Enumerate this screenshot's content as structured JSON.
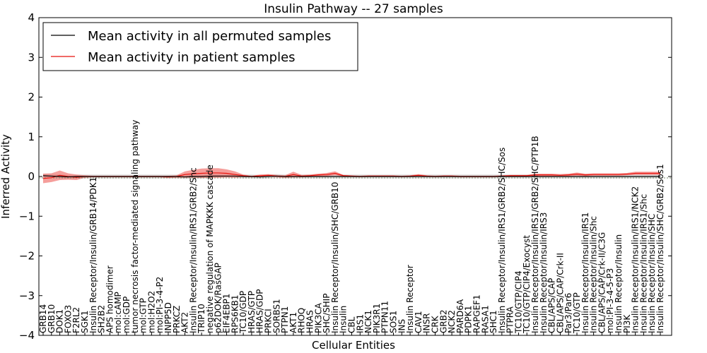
{
  "chart_data": {
    "type": "line",
    "title": "Insulin Pathway -- 27 samples",
    "xlabel": "Cellular Entities",
    "ylabel": "Inferred Activity",
    "ylim": [
      -4,
      4
    ],
    "yticks": [
      -4,
      -3,
      -2,
      -1,
      0,
      1,
      2,
      3,
      4
    ],
    "ytick_labels": [
      "−4",
      "−3",
      "−2",
      "−1",
      "0",
      "1",
      "2",
      "3",
      "4"
    ],
    "grid": false,
    "legend_position": "top-left",
    "colors": {
      "permuted": "#000000",
      "patient": "#e8120c",
      "patient_band": "#ef6a66",
      "permuted_band": "#bdbdbd",
      "zero_line": "#7a8a6a"
    },
    "categories": [
      "GRB14",
      "GRB10",
      "DOK1",
      "FOXO3",
      "F2RL2",
      "SGK1",
      "Insulin Receptor/Insulin/GRB14/PDK1",
      "SH2B2",
      "APS homodimer",
      "mol:cAMP",
      "mol:GDP",
      "tumor necrosis factor-mediated signaling pathway",
      "mol:GTP",
      "mol:H2O2",
      "mol:PI-3-4-P2",
      "INPP5D",
      "PRKCZ",
      "AKT2",
      "Insulin Receptor/Insulin/IRS1/GRB2/Shc",
      "TRIP10",
      "negative regulation of MAPKKK cascade",
      "p62DOK/RasGAP",
      "EIF4EBP1",
      "RPS6KB1",
      "TC10/GDP",
      "HRAS/GTP",
      "HRAS/GDP",
      "PRKCI",
      "SORBS1",
      "PTPN1",
      "AKT1",
      "RHOQ",
      "HRAS",
      "PIK3CA",
      "SHC/SHIP",
      "Insulin Receptor/Insulin/SHC/GRB10",
      "Insulin",
      "CBL",
      "IRS1",
      "NCK1",
      "PIK3R1",
      "PTPN11",
      "SOS1",
      "INS",
      "Insulin Receptor",
      "CAV1",
      "INSR",
      "CRK",
      "GRB2",
      "NCK2",
      "PARD6A",
      "PDPK1",
      "RAPGEF1",
      "RASA1",
      "SHC1",
      "Insulin Receptor/Insulin/IRS1/GRB2/SHC/Sos",
      "PTPRA",
      "TC10/GTP/CIP4",
      "TC10/GTP/CIP4/Exocyst",
      "Insulin Receptor/Insulin/IRS1/GRB2/SHC/PTP1B",
      "Insulin Receptor/Insulin/IRS3",
      "CBL/APS/CAP",
      "CBL/APS/CAP/Crk-II",
      "Par3/Par6",
      "TC10/GTP",
      "Insulin Receptor/Insulin/IRS1",
      "Insulin Receptor/Insulin/Shc",
      "CBL/APS/CAP/Crk-II/C3G",
      "mol:PI-3-4-5-P3",
      "Insulin Receptor/Insulin",
      "PI3K",
      "Insulin Receptor/Insulin/IRS1/NCK2",
      "Insulin Receptor/Insulin/IRS1/Shc",
      "Insulin Receptor/Insulin/SHC",
      "Insulin Receptor/Insulin/SHC/GRB2/Sos1"
    ],
    "series": [
      {
        "name": "Mean activity in all permuted samples",
        "values": [
          0.02,
          0.01,
          0.0,
          -0.01,
          0.0,
          0.0,
          0.0,
          0.0,
          0.0,
          0.0,
          0.0,
          0.0,
          0.0,
          0.0,
          0.0,
          0.0,
          0.0,
          -0.01,
          0.0,
          0.0,
          0.01,
          0.01,
          0.01,
          0.01,
          0.0,
          0.0,
          -0.01,
          0.0,
          0.01,
          0.0,
          0.0,
          0.0,
          0.0,
          0.0,
          0.0,
          0.0,
          0.0,
          0.0,
          0.0,
          0.0,
          0.0,
          0.0,
          0.0,
          0.0,
          0.0,
          0.0,
          0.0,
          0.0,
          0.0,
          0.0,
          0.0,
          0.0,
          0.0,
          0.0,
          0.0,
          0.0,
          0.0,
          0.0,
          0.0,
          0.0,
          0.0,
          0.0,
          0.0,
          0.0,
          0.0,
          0.0,
          0.0,
          0.0,
          0.0,
          0.0,
          0.0,
          0.0,
          0.0,
          0.0,
          0.0
        ]
      },
      {
        "name": "Mean activity in patient samples",
        "values": [
          -0.05,
          -0.03,
          0.03,
          0.0,
          -0.02,
          0.0,
          0.0,
          0.0,
          0.0,
          0.0,
          0.0,
          0.0,
          0.0,
          0.0,
          0.0,
          -0.01,
          0.0,
          0.05,
          0.07,
          0.08,
          0.09,
          0.09,
          0.08,
          0.05,
          0.02,
          0.0,
          0.02,
          0.03,
          0.01,
          0.0,
          0.05,
          0.01,
          0.02,
          0.04,
          0.05,
          0.08,
          0.02,
          0.01,
          0.0,
          0.01,
          0.01,
          0.01,
          0.01,
          0.0,
          0.01,
          0.03,
          0.01,
          0.0,
          0.01,
          0.01,
          0.0,
          0.0,
          0.0,
          0.0,
          0.0,
          0.01,
          0.02,
          0.02,
          0.02,
          0.04,
          0.04,
          0.04,
          0.03,
          0.04,
          0.06,
          0.04,
          0.05,
          0.05,
          0.05,
          0.05,
          0.06,
          0.08,
          0.08,
          0.08,
          0.08
        ]
      }
    ],
    "band_halfwidth": {
      "permuted": 0.05,
      "patient": [
        0.12,
        0.11,
        0.12,
        0.08,
        0.07,
        0.03,
        0.02,
        0.02,
        0.02,
        0.02,
        0.02,
        0.02,
        0.02,
        0.02,
        0.02,
        0.03,
        0.03,
        0.08,
        0.1,
        0.12,
        0.12,
        0.12,
        0.1,
        0.08,
        0.03,
        0.02,
        0.03,
        0.03,
        0.03,
        0.03,
        0.07,
        0.03,
        0.03,
        0.03,
        0.04,
        0.05,
        0.02,
        0.02,
        0.02,
        0.02,
        0.02,
        0.02,
        0.02,
        0.02,
        0.02,
        0.03,
        0.02,
        0.02,
        0.02,
        0.02,
        0.02,
        0.02,
        0.02,
        0.02,
        0.02,
        0.02,
        0.02,
        0.02,
        0.02,
        0.03,
        0.03,
        0.03,
        0.03,
        0.03,
        0.04,
        0.03,
        0.03,
        0.03,
        0.03,
        0.03,
        0.03,
        0.04,
        0.04,
        0.04,
        0.04
      ]
    }
  }
}
